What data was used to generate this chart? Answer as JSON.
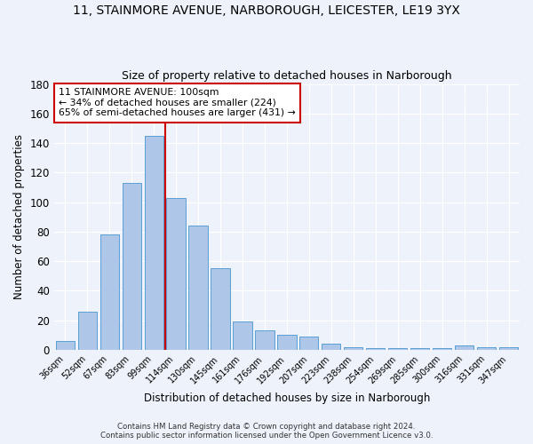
{
  "title_line1": "11, STAINMORE AVENUE, NARBOROUGH, LEICESTER, LE19 3YX",
  "title_line2": "Size of property relative to detached houses in Narborough",
  "xlabel": "Distribution of detached houses by size in Narborough",
  "ylabel": "Number of detached properties",
  "categories": [
    "36sqm",
    "52sqm",
    "67sqm",
    "83sqm",
    "99sqm",
    "114sqm",
    "130sqm",
    "145sqm",
    "161sqm",
    "176sqm",
    "192sqm",
    "207sqm",
    "223sqm",
    "238sqm",
    "254sqm",
    "269sqm",
    "285sqm",
    "300sqm",
    "316sqm",
    "331sqm",
    "347sqm"
  ],
  "values": [
    6,
    26,
    78,
    113,
    145,
    103,
    84,
    55,
    19,
    13,
    10,
    9,
    4,
    2,
    1,
    1,
    1,
    1,
    3,
    2,
    2
  ],
  "bar_color": "#aec6e8",
  "bar_edge_color": "#5a9fd4",
  "vline_color": "#cc0000",
  "annotation_text": "11 STAINMORE AVENUE: 100sqm\n← 34% of detached houses are smaller (224)\n65% of semi-detached houses are larger (431) →",
  "annotation_box_color": "#ffffff",
  "annotation_box_edge_color": "#cc0000",
  "ylim": [
    0,
    180
  ],
  "yticks": [
    0,
    20,
    40,
    60,
    80,
    100,
    120,
    140,
    160,
    180
  ],
  "footer_line1": "Contains HM Land Registry data © Crown copyright and database right 2024.",
  "footer_line2": "Contains public sector information licensed under the Open Government Licence v3.0.",
  "background_color": "#eef2fa",
  "grid_color": "#ffffff"
}
